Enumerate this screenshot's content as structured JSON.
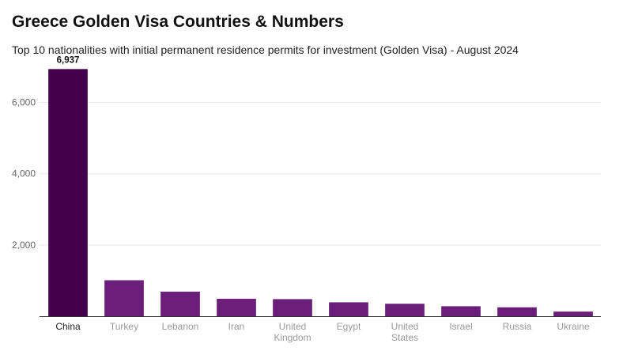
{
  "title": "Greece Golden Visa Countries & Numbers",
  "subtitle": "Top 10 nationalities with initial permanent residence permits for investment (Golden Visa) - August 2024",
  "chart_data": {
    "type": "bar",
    "categories": [
      "China",
      "Turkey",
      "Lebanon",
      "Iran",
      "United Kingdom",
      "Egypt",
      "United States",
      "Israel",
      "Russia",
      "Ukraine"
    ],
    "category_lines": [
      [
        "China"
      ],
      [
        "Turkey"
      ],
      [
        "Lebanon"
      ],
      [
        "Iran"
      ],
      [
        "United",
        "Kingdom"
      ],
      [
        "Egypt"
      ],
      [
        "United",
        "States"
      ],
      [
        "Israel"
      ],
      [
        "Russia"
      ],
      [
        "Ukraine"
      ]
    ],
    "values": [
      6937,
      1010,
      690,
      490,
      480,
      390,
      350,
      280,
      250,
      130
    ],
    "data_labels": [
      "6,937"
    ],
    "yticks": [
      2000,
      4000,
      6000
    ],
    "ytick_labels": [
      "2,000",
      "4,000",
      "6,000"
    ],
    "ylim": [
      0,
      7300
    ],
    "grid": true,
    "colors": {
      "highlight": "#44004d",
      "bars": "#6b1f7a",
      "grid": "#e6e6e6",
      "axis": "#333333"
    }
  }
}
